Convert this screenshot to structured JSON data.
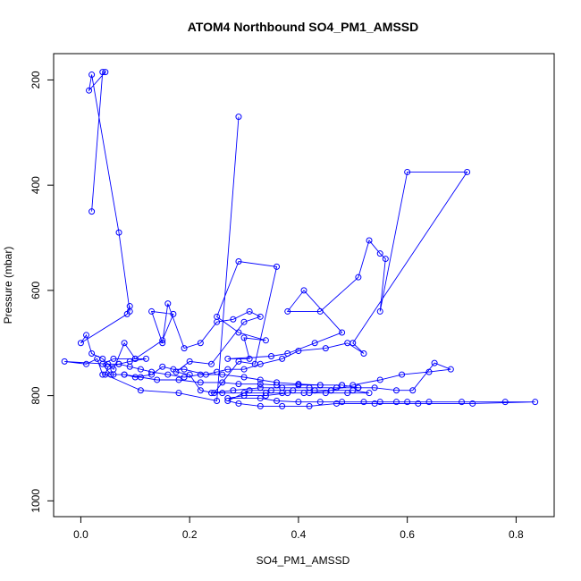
{
  "chart_data": {
    "type": "line",
    "title": "ATOM4 Northbound SO4_PM1_AMSSD",
    "xlabel": "SO4_PM1_AMSSD",
    "ylabel": "Pressure (mbar)",
    "xlim": [
      -0.05,
      0.87
    ],
    "ylim": [
      1030,
      150
    ],
    "y_reversed": true,
    "x_ticks": [
      0.0,
      0.2,
      0.4,
      0.6,
      0.8
    ],
    "x_tick_labels": [
      "0.0",
      "0.2",
      "0.4",
      "0.6",
      "0.8"
    ],
    "y_ticks": [
      200,
      400,
      600,
      800,
      1000
    ],
    "y_tick_labels": [
      "200",
      "400",
      "600",
      "800",
      "1000"
    ],
    "grid": false,
    "series": [
      {
        "color": "#0000ff",
        "marker": "open-circle",
        "x": [
          0.02,
          0.04,
          0.045,
          0.015,
          0.02,
          0.07,
          0.09,
          0.09,
          0.085,
          0.0,
          0.01,
          0.02,
          0.04,
          0.06,
          0.08,
          0.1,
          0.15,
          0.17,
          0.13,
          0.15,
          0.16,
          0.19,
          0.22,
          0.25,
          0.28,
          0.31,
          0.33,
          0.3,
          0.24,
          0.2,
          0.175,
          0.2,
          0.22,
          0.245,
          0.29,
          0.32,
          0.36,
          0.29,
          0.25,
          0.29,
          0.34,
          0.3,
          0.31,
          0.27,
          0.35,
          0.38,
          0.43,
          0.48,
          0.41,
          0.38,
          0.44,
          0.51,
          0.53,
          0.55,
          0.56,
          0.55,
          0.6,
          0.71,
          0.5,
          0.52,
          0.49,
          0.45,
          0.4,
          0.37,
          0.33,
          0.3,
          0.27,
          0.25,
          0.23,
          0.19,
          0.17,
          0.15,
          0.13,
          0.1,
          0.08,
          0.06,
          0.04,
          0.03,
          0.01,
          -0.03,
          0.05,
          0.07,
          0.09,
          0.11,
          0.13,
          0.16,
          0.19,
          0.22,
          0.26,
          0.3,
          0.33,
          0.36,
          0.4,
          0.44,
          0.48,
          0.51,
          0.54,
          0.58,
          0.61,
          0.65,
          0.68,
          0.64,
          0.59,
          0.55,
          0.5,
          0.46,
          0.42,
          0.38,
          0.34,
          0.3,
          0.27,
          0.33,
          0.36,
          0.4,
          0.44,
          0.48,
          0.52,
          0.55,
          0.58,
          0.6,
          0.64,
          0.7,
          0.78,
          0.835,
          0.72,
          0.62,
          0.54,
          0.47,
          0.42,
          0.37,
          0.33,
          0.29,
          0.27,
          0.31,
          0.35,
          0.39,
          0.43,
          0.46,
          0.5,
          0.53,
          0.49,
          0.45,
          0.41,
          0.37,
          0.34,
          0.3,
          0.26,
          0.24,
          0.28,
          0.33,
          0.37,
          0.42,
          0.47,
          0.51,
          0.48,
          0.44,
          0.4,
          0.36,
          0.33,
          0.29,
          0.26,
          0.22,
          0.18,
          0.14,
          0.11,
          0.08,
          0.055,
          0.04,
          0.06,
          0.1,
          0.12,
          0.09,
          0.07,
          0.05,
          0.045,
          0.11,
          0.18,
          0.25,
          0.29
        ],
        "y": [
          450,
          185,
          185,
          220,
          190,
          490,
          640,
          630,
          645,
          700,
          685,
          720,
          730,
          750,
          700,
          730,
          695,
          645,
          640,
          700,
          625,
          710,
          700,
          660,
          655,
          640,
          650,
          660,
          740,
          735,
          755,
          760,
          790,
          795,
          735,
          740,
          555,
          545,
          650,
          680,
          695,
          690,
          730,
          730,
          725,
          720,
          700,
          680,
          600,
          640,
          640,
          575,
          505,
          530,
          540,
          640,
          375,
          375,
          700,
          720,
          700,
          710,
          715,
          730,
          740,
          750,
          750,
          755,
          760,
          750,
          750,
          745,
          760,
          765,
          760,
          760,
          760,
          730,
          740,
          735,
          740,
          740,
          745,
          750,
          755,
          760,
          765,
          760,
          760,
          765,
          770,
          775,
          778,
          780,
          780,
          785,
          785,
          790,
          790,
          738,
          750,
          755,
          760,
          770,
          780,
          790,
          795,
          795,
          800,
          800,
          805,
          805,
          810,
          812,
          812,
          812,
          812,
          812,
          812,
          812,
          812,
          812,
          812,
          812,
          815,
          815,
          815,
          815,
          820,
          820,
          820,
          815,
          810,
          790,
          790,
          790,
          790,
          790,
          790,
          795,
          795,
          795,
          795,
          795,
          795,
          795,
          795,
          795,
          790,
          785,
          785,
          785,
          785,
          785,
          780,
          780,
          780,
          780,
          778,
          778,
          775,
          775,
          770,
          770,
          765,
          760,
          760,
          740,
          730,
          730,
          730,
          735,
          740,
          745,
          760,
          790,
          795,
          810,
          270
        ]
      }
    ]
  }
}
